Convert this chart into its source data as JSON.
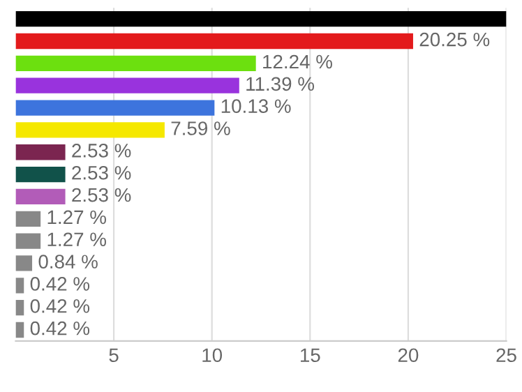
{
  "chart_data": {
    "type": "bar",
    "orientation": "horizontal",
    "categories": [
      null,
      null,
      null,
      null,
      null,
      null,
      null,
      null,
      null,
      null,
      null,
      null,
      null,
      null,
      null
    ],
    "values": [
      25,
      20.25,
      12.24,
      11.39,
      10.13,
      7.59,
      2.53,
      2.53,
      2.53,
      1.27,
      1.27,
      0.84,
      0.42,
      0.42,
      0.42
    ],
    "colors": [
      "#000000",
      "#e31a1c",
      "#6ce00f",
      "#9933dd",
      "#3d74dd",
      "#f5e800",
      "#7b2550",
      "#11524a",
      "#b25cb8",
      "#888888",
      "#888888",
      "#888888",
      "#888888",
      "#888888",
      "#888888"
    ],
    "value_labels": [
      null,
      "20.25 %",
      "12.24 %",
      "11.39 %",
      "10.13 %",
      "7.59 %",
      "2.53 %",
      "2.53 %",
      "2.53 %",
      "1.27 %",
      "1.27 %",
      "0.84 %",
      "0.42 %",
      "0.42 %",
      "0.42 %"
    ],
    "xlim": [
      0,
      25
    ],
    "xticks": [
      5,
      10,
      15,
      20,
      25
    ],
    "grid": "x",
    "tick_labels": "x"
  }
}
